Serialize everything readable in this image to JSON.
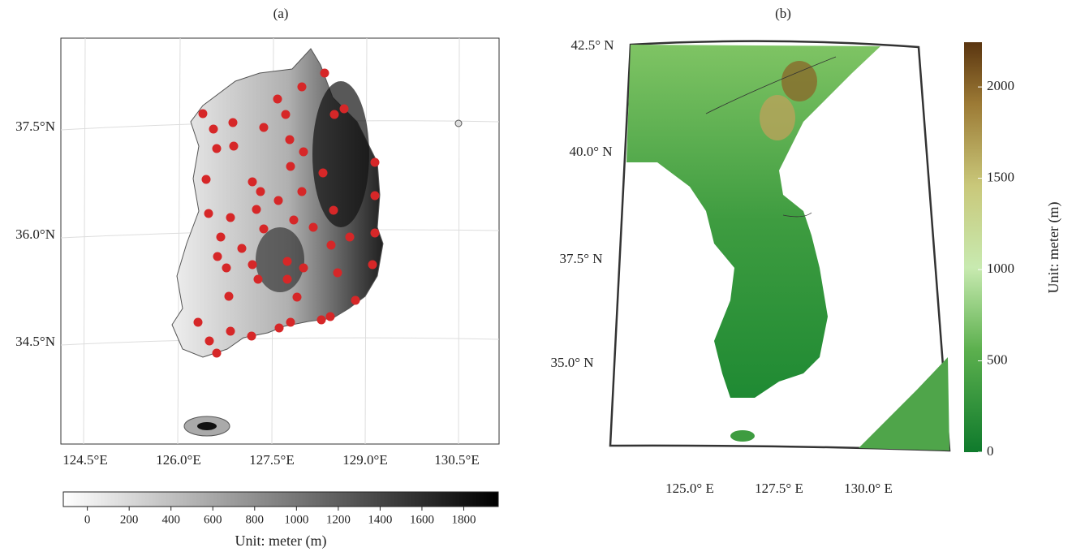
{
  "panels": [
    {
      "label": "(a)",
      "lat_labels": [
        "37.5°N",
        "36.0°N",
        "34.5°N"
      ],
      "lon_labels": [
        "124.5°E",
        "126.0°E",
        "127.5°E",
        "129.0°E",
        "130.5°E"
      ],
      "colorbar": {
        "lim": [
          -115,
          1965
        ],
        "ticks": [
          0,
          200,
          400,
          600,
          800,
          1000,
          1200,
          1400,
          1600,
          1800
        ],
        "label": "Unit: meter (m)"
      }
    },
    {
      "label": "(b)",
      "lat_labels": [
        "42.5° N",
        "40.0° N",
        "37.5° N",
        "35.0° N"
      ],
      "lon_labels": [
        "125.0° E",
        "127.5° E",
        "130.0° E"
      ],
      "colorbar": {
        "lim": [
          0,
          2245
        ],
        "ticks": [
          0,
          500,
          1000,
          1500,
          2000
        ],
        "label": "Unit: meter (m)"
      }
    }
  ]
}
